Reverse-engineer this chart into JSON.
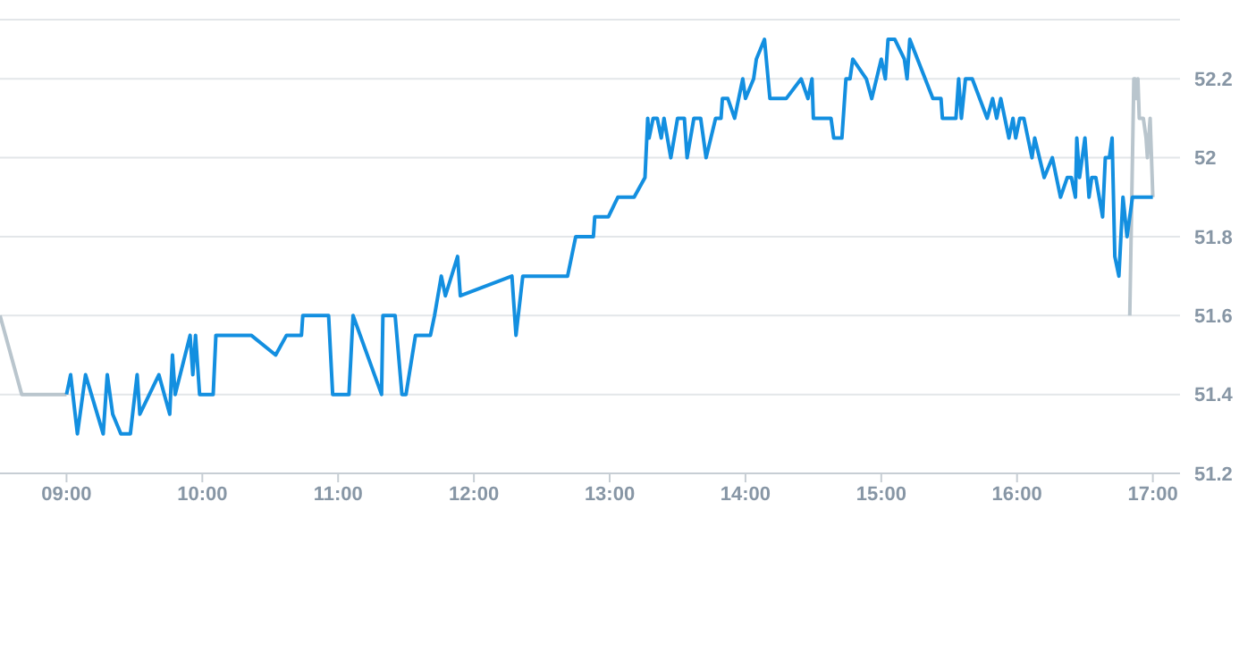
{
  "chart_data": {
    "type": "line",
    "xlim": [
      8.51,
      17.2
    ],
    "xticks": [
      {
        "value": 9,
        "label": "09:00"
      },
      {
        "value": 10,
        "label": "10:00"
      },
      {
        "value": 11,
        "label": "11:00"
      },
      {
        "value": 12,
        "label": "12:00"
      },
      {
        "value": 13,
        "label": "13:00"
      },
      {
        "value": 14,
        "label": "14:00"
      },
      {
        "value": 15,
        "label": "15:00"
      },
      {
        "value": 16,
        "label": "16:00"
      },
      {
        "value": 17,
        "label": "17:00"
      }
    ],
    "ylim": [
      51.2,
      52.35
    ],
    "yticks": [
      51.2,
      51.4,
      51.6,
      51.8,
      52,
      52.2
    ],
    "grid": "y",
    "series": [
      {
        "color": "#b9c5cd",
        "x": [
          8.51,
          8.67,
          9.0
        ],
        "values": [
          51.6,
          51.4,
          51.4
        ]
      },
      {
        "color": "#b9c5cd",
        "x": [
          16.83,
          16.86,
          16.87,
          16.88,
          16.89,
          16.9,
          16.93,
          16.95,
          16.96,
          16.98,
          17.0
        ],
        "values": [
          51.6,
          52.2,
          52.2,
          52.15,
          52.2,
          52.1,
          52.1,
          52.05,
          52.0,
          52.1,
          51.9
        ]
      },
      {
        "color": "#138fe0",
        "x": [
          9.0,
          9.03,
          9.08,
          9.14,
          9.27,
          9.3,
          9.34,
          9.4,
          9.47,
          9.52,
          9.54,
          9.68,
          9.76,
          9.78,
          9.8,
          9.91,
          9.93,
          9.95,
          9.98,
          10.08,
          10.1,
          10.36,
          10.54,
          10.62,
          10.73,
          10.74,
          10.93,
          10.96,
          11.08,
          11.11,
          11.32,
          11.33,
          11.42,
          11.47,
          11.5,
          11.57,
          11.68,
          11.71,
          11.76,
          11.79,
          11.88,
          11.9,
          12.28,
          12.31,
          12.36,
          12.69,
          12.75,
          12.88,
          12.89,
          12.99,
          13.06,
          13.18,
          13.26,
          13.28,
          13.29,
          13.32,
          13.35,
          13.38,
          13.4,
          13.45,
          13.5,
          13.55,
          13.57,
          13.62,
          13.67,
          13.71,
          13.78,
          13.82,
          13.83,
          13.87,
          13.92,
          13.98,
          14.0,
          14.06,
          14.08,
          14.14,
          14.18,
          14.3,
          14.41,
          14.46,
          14.49,
          14.5,
          14.63,
          14.65,
          14.71,
          14.74,
          14.77,
          14.79,
          14.89,
          14.93,
          15.0,
          15.03,
          15.05,
          15.1,
          15.17,
          15.19,
          15.21,
          15.38,
          15.44,
          15.45,
          15.55,
          15.57,
          15.59,
          15.62,
          15.67,
          15.78,
          15.82,
          15.85,
          15.88,
          15.94,
          15.97,
          15.99,
          16.02,
          16.05,
          16.11,
          16.13,
          16.2,
          16.26,
          16.32,
          16.37,
          16.4,
          16.43,
          16.44,
          16.46,
          16.5,
          16.53,
          16.55,
          16.58,
          16.63,
          16.65,
          16.68,
          16.7,
          16.72,
          16.75,
          16.78,
          16.81,
          16.85,
          17.0
        ],
        "values": [
          51.4,
          51.45,
          51.3,
          51.45,
          51.3,
          51.45,
          51.35,
          51.3,
          51.3,
          51.45,
          51.35,
          51.45,
          51.35,
          51.5,
          51.4,
          51.55,
          51.45,
          51.55,
          51.4,
          51.4,
          51.55,
          51.55,
          51.5,
          51.55,
          51.55,
          51.6,
          51.6,
          51.4,
          51.4,
          51.6,
          51.4,
          51.6,
          51.6,
          51.4,
          51.4,
          51.55,
          51.55,
          51.6,
          51.7,
          51.65,
          51.75,
          51.65,
          51.7,
          51.55,
          51.7,
          51.7,
          51.8,
          51.8,
          51.85,
          51.85,
          51.9,
          51.9,
          51.95,
          52.1,
          52.05,
          52.1,
          52.1,
          52.05,
          52.1,
          52.0,
          52.1,
          52.1,
          52.0,
          52.1,
          52.1,
          52.0,
          52.1,
          52.1,
          52.15,
          52.15,
          52.1,
          52.2,
          52.15,
          52.2,
          52.25,
          52.3,
          52.15,
          52.15,
          52.2,
          52.15,
          52.2,
          52.1,
          52.1,
          52.05,
          52.05,
          52.2,
          52.2,
          52.25,
          52.2,
          52.15,
          52.25,
          52.2,
          52.3,
          52.3,
          52.25,
          52.2,
          52.3,
          52.15,
          52.15,
          52.1,
          52.1,
          52.2,
          52.1,
          52.2,
          52.2,
          52.1,
          52.15,
          52.1,
          52.15,
          52.05,
          52.1,
          52.05,
          52.1,
          52.1,
          52.0,
          52.05,
          51.95,
          52.0,
          51.9,
          51.95,
          51.95,
          51.9,
          52.05,
          51.95,
          52.05,
          51.9,
          51.95,
          51.95,
          51.85,
          52.0,
          52.0,
          52.05,
          51.75,
          51.7,
          51.9,
          51.8,
          51.9,
          51.9
        ]
      }
    ]
  }
}
